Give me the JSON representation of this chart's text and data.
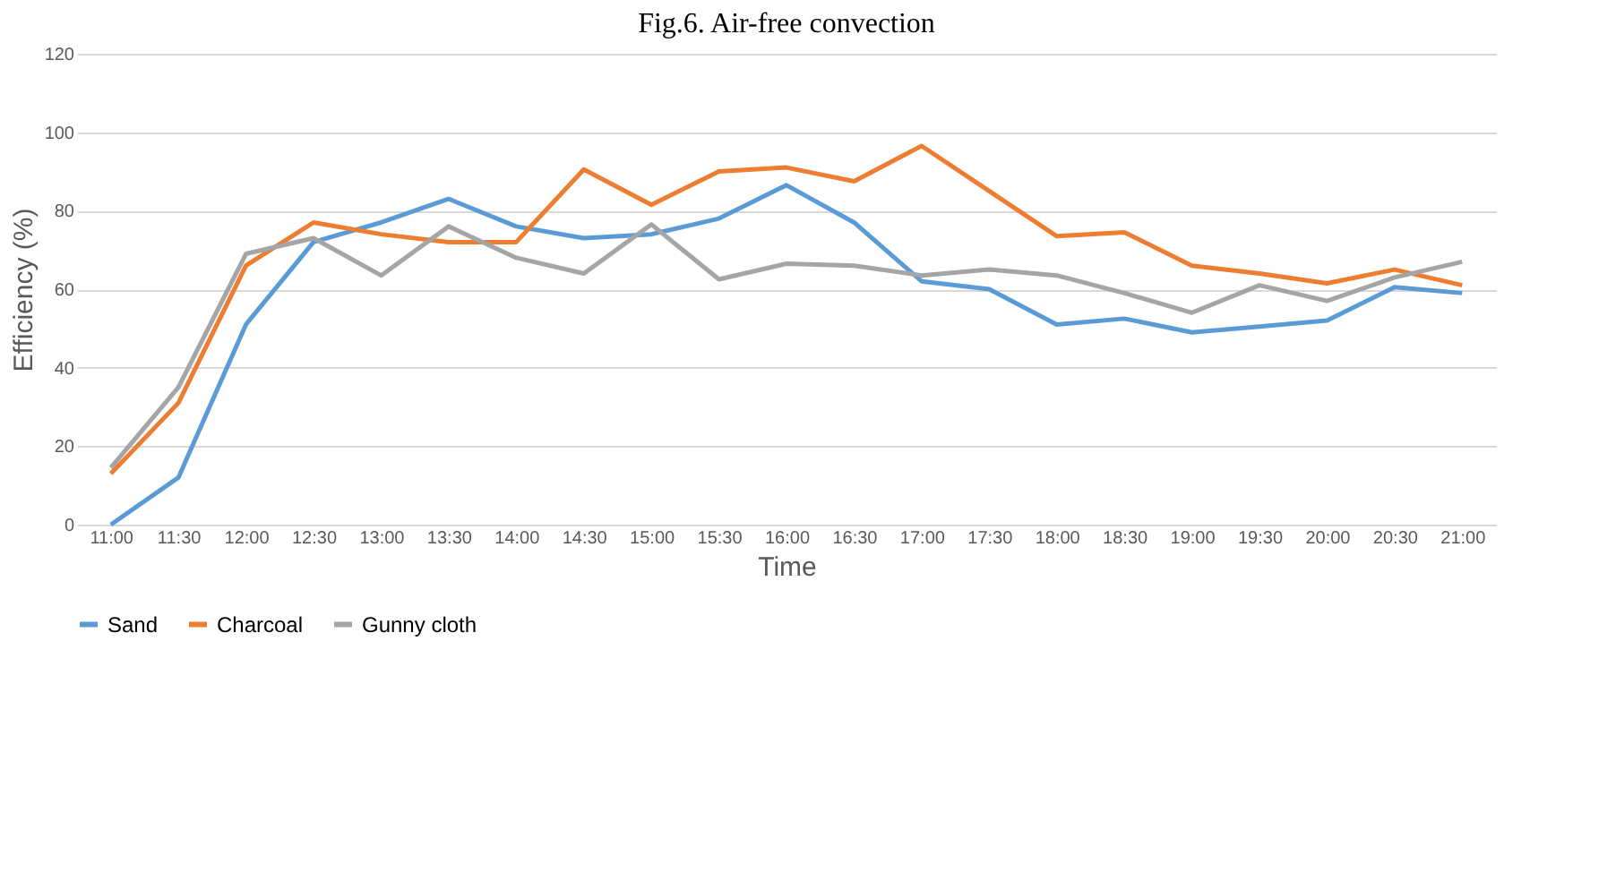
{
  "chart_data": {
    "type": "line",
    "title": "Fig.6. Air-free convection",
    "xlabel": "Time",
    "ylabel": "Efficiency (%)",
    "categories": [
      "11:00",
      "11:30",
      "12:00",
      "12:30",
      "13:00",
      "13:30",
      "14:00",
      "14:30",
      "15:00",
      "15:30",
      "16:00",
      "16:30",
      "17:00",
      "17:30",
      "18:00",
      "18:30",
      "19:00",
      "19:30",
      "20:00",
      "20:30",
      "21:00"
    ],
    "series": [
      {
        "name": "Sand",
        "color": "#5b9bd5",
        "values": [
          0,
          12,
          51,
          72,
          77,
          83,
          76,
          73,
          74,
          78,
          86.5,
          77,
          62,
          60,
          51,
          52.5,
          49,
          50.5,
          52,
          60.5,
          59
        ]
      },
      {
        "name": "Charcoal",
        "color": "#ed7d31",
        "values": [
          13,
          31,
          66,
          77,
          74,
          72,
          72,
          90.5,
          81.5,
          90,
          91,
          87.5,
          96.5,
          85,
          73.5,
          74.5,
          66,
          64,
          61.5,
          65,
          61
        ]
      },
      {
        "name": "Gunny cloth",
        "color": "#a5a5a5",
        "values": [
          14.5,
          35,
          69,
          73,
          63.5,
          76,
          68,
          64,
          76.5,
          62.5,
          66.5,
          66,
          63.5,
          65,
          63.5,
          59,
          54,
          61,
          57,
          63,
          67
        ]
      }
    ],
    "ylim": [
      0,
      120
    ],
    "yticks": [
      0,
      20,
      40,
      60,
      80,
      100,
      120
    ],
    "grid": "y",
    "legend": "bottom",
    "marker": "none",
    "line_style": "solid"
  }
}
